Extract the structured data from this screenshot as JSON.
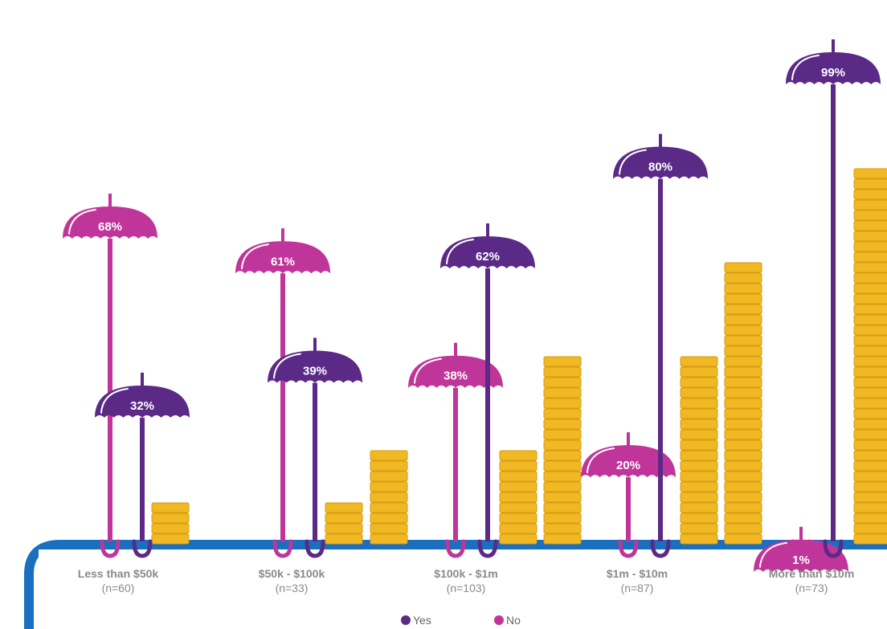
{
  "chart_data": {
    "type": "bar",
    "categories": [
      "Less than $50k",
      "$50k - $100k",
      "$100k - $1m",
      "$1m - $10m",
      "More than $10m"
    ],
    "sample_sizes": [
      "(n=60)",
      "(n=33)",
      "(n=103)",
      "(n=87)",
      "(n=73)"
    ],
    "series": [
      {
        "name": "No",
        "values": [
          68,
          61,
          38,
          20,
          1
        ],
        "labels": [
          "68%",
          "61%",
          "38%",
          "20%",
          "1%"
        ]
      },
      {
        "name": "Yes",
        "values": [
          32,
          39,
          62,
          80,
          99
        ],
        "labels": [
          "32%",
          "39%",
          "62%",
          "80%",
          "99%"
        ]
      }
    ],
    "coin_stack_heights": [
      [
        4
      ],
      [
        4,
        9
      ],
      [
        9,
        18
      ],
      [
        18,
        27
      ],
      [
        36
      ]
    ],
    "ylim": [
      0,
      100
    ],
    "legend": {
      "placement": "bottom",
      "entries": [
        "Yes",
        "No"
      ]
    },
    "colors": {
      "Yes": "#5b2a86",
      "No": "#c0359a",
      "coin": "#f0b823",
      "coin_edge": "#d79b12",
      "base": "#1a6fbf"
    }
  }
}
